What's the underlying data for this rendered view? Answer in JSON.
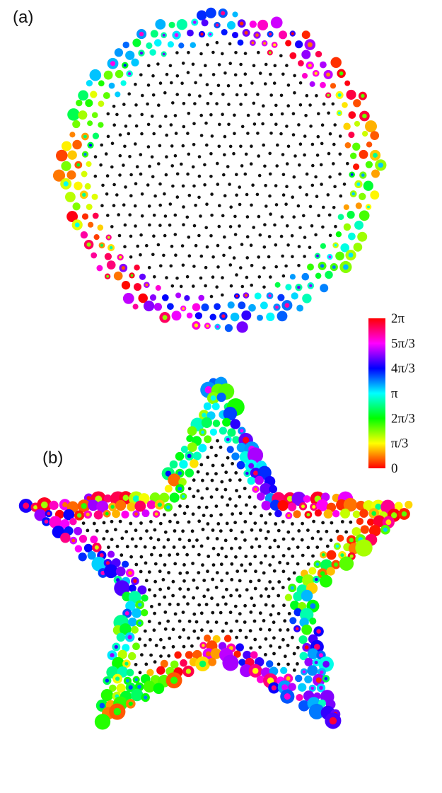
{
  "figure": {
    "panels": [
      {
        "id": "a",
        "label": "(a)",
        "shape": "dodecagon",
        "lattice": "quasicrystal"
      },
      {
        "id": "b",
        "label": "(b)",
        "shape": "five-pointed star",
        "lattice": "quasicrystal"
      }
    ],
    "colorbar": {
      "quantity": "phase",
      "range": [
        0,
        6.2832
      ],
      "ticks": [
        "2π",
        "5π/3",
        "4π/3",
        "π",
        "2π/3",
        "π/3",
        "0"
      ],
      "colors": [
        "#ff0000",
        "#ff00ff",
        "#0000ff",
        "#00ffff",
        "#00ff00",
        "#ffff00",
        "#ff0000"
      ]
    },
    "marker_colors": {
      "bulk_dot": "#111111",
      "edge_ring": "#000000"
    }
  }
}
